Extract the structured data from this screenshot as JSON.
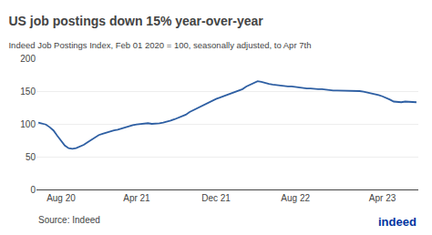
{
  "chart_data": {
    "type": "line",
    "title": "US job postings down 15% year-over-year",
    "subtitle": "Indeed Job Postings Index, Feb 01 2020 = 100, seasonally adjusted, to Apr 7th",
    "annotations": [
      {
        "text": "Source: Indeed"
      },
      {
        "text": "indeed",
        "color": "#0033a0"
      }
    ],
    "x": [
      0,
      1,
      2,
      3,
      4,
      5,
      6,
      7,
      8,
      9,
      10,
      11,
      12,
      13,
      14,
      15,
      16,
      17,
      18,
      19,
      20,
      21,
      22,
      23,
      24,
      25,
      26,
      27,
      28,
      29,
      30,
      31,
      32,
      33,
      34,
      35,
      36,
      37,
      38,
      39,
      40,
      41,
      42,
      43,
      44,
      45,
      46,
      47,
      48,
      49,
      50,
      51,
      52,
      53,
      54,
      55,
      56,
      57,
      58,
      59,
      60,
      61,
      62,
      63,
      64,
      65,
      66,
      67,
      68,
      69,
      70,
      71,
      72,
      73,
      74,
      75,
      76,
      77,
      78,
      79,
      80,
      81,
      82,
      83,
      84,
      85,
      86,
      87,
      88,
      89,
      90,
      91,
      92,
      93,
      94,
      95,
      96,
      97,
      98,
      99,
      100
    ],
    "values": [
      102,
      101,
      99,
      95,
      90,
      82,
      74,
      67,
      63,
      62,
      63,
      65,
      68,
      72,
      76,
      80,
      83,
      85,
      87,
      88,
      90,
      91,
      93,
      95,
      97,
      98,
      99,
      100,
      101,
      101,
      100,
      100,
      101,
      102,
      103,
      105,
      107,
      109,
      111,
      114,
      118,
      121,
      124,
      127,
      130,
      133,
      136,
      138,
      140,
      142,
      144,
      146,
      148,
      150,
      153,
      157,
      160,
      163,
      165,
      164,
      162,
      161,
      160,
      159,
      158,
      158,
      157,
      157,
      156,
      155,
      155,
      154,
      154,
      153,
      153,
      153,
      152,
      152,
      151,
      151,
      151,
      151,
      150,
      150,
      150,
      150,
      149,
      148,
      147,
      146,
      144,
      142,
      140,
      137,
      134,
      133,
      133,
      134,
      134,
      134,
      133
    ],
    "color": "#2e5fa3",
    "xlim": [
      -0.5,
      100.5
    ],
    "xticks": [
      {
        "value": 6,
        "label": "Aug 20"
      },
      {
        "value": 26,
        "label": "Apr 21"
      },
      {
        "value": 47,
        "label": "Dec 21"
      },
      {
        "value": 68,
        "label": "Aug 22"
      },
      {
        "value": 91,
        "label": "Apr 23"
      }
    ],
    "ylim": [
      0,
      200
    ],
    "yticks": [
      0,
      50,
      100,
      150,
      200
    ],
    "grid": true
  }
}
